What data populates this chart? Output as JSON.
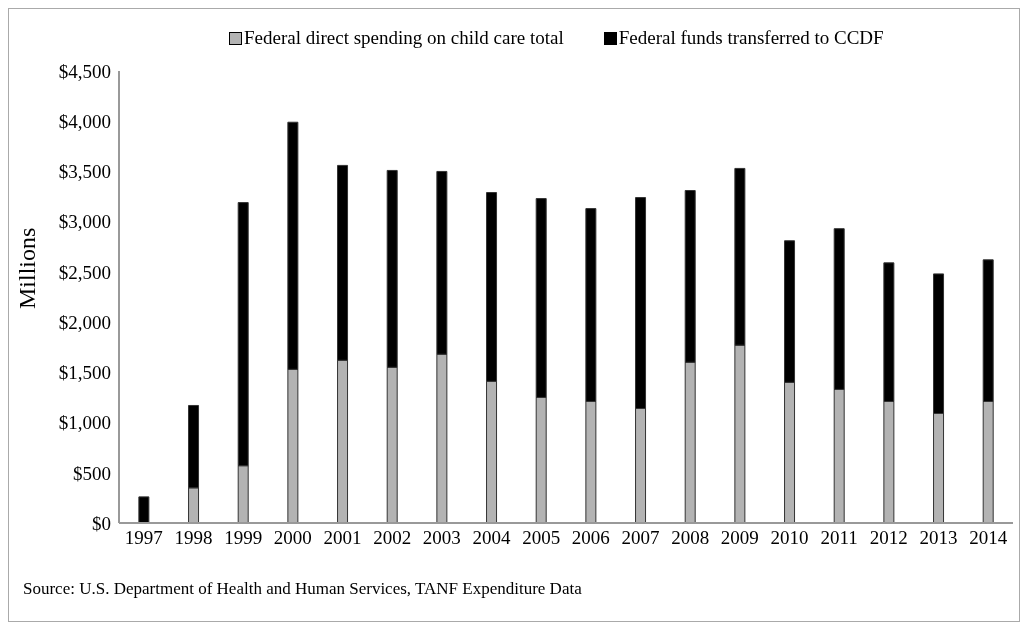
{
  "chart_data": {
    "type": "bar",
    "stacked": true,
    "ylabel": "Millions",
    "categories": [
      "1997",
      "1998",
      "1999",
      "2000",
      "2001",
      "2002",
      "2003",
      "2004",
      "2005",
      "2006",
      "2007",
      "2008",
      "2009",
      "2010",
      "2011",
      "2012",
      "2013",
      "2014"
    ],
    "series": [
      {
        "name": "Federal direct spending on child care total",
        "color": "#b3b3b3",
        "values": [
          0,
          350,
          570,
          1530,
          1620,
          1550,
          1680,
          1410,
          1250,
          1210,
          1140,
          1600,
          1770,
          1400,
          1330,
          1210,
          1090,
          1210
        ]
      },
      {
        "name": "Federal funds transferred to CCDF",
        "color": "#000000",
        "values": [
          260,
          820,
          2620,
          2460,
          1940,
          1960,
          1820,
          1880,
          1980,
          1920,
          2100,
          1710,
          1760,
          1410,
          1600,
          1380,
          1390,
          1410
        ]
      }
    ],
    "ylim": [
      0,
      4500
    ],
    "yticks": [
      {
        "value": 0,
        "label": "$0"
      },
      {
        "value": 500,
        "label": "$500"
      },
      {
        "value": 1000,
        "label": "$1,000"
      },
      {
        "value": 1500,
        "label": "$1,500"
      },
      {
        "value": 2000,
        "label": "$2,000"
      },
      {
        "value": 2500,
        "label": "$2,500"
      },
      {
        "value": 3000,
        "label": "$3,000"
      },
      {
        "value": 3500,
        "label": "$3,500"
      },
      {
        "value": 4000,
        "label": "$4,000"
      },
      {
        "value": 4500,
        "label": "$4,500"
      }
    ],
    "grid": false,
    "legend": "top",
    "annotations": [
      "Source: U.S. Department of Health and Human Services, TANF Expenditure Data"
    ]
  }
}
